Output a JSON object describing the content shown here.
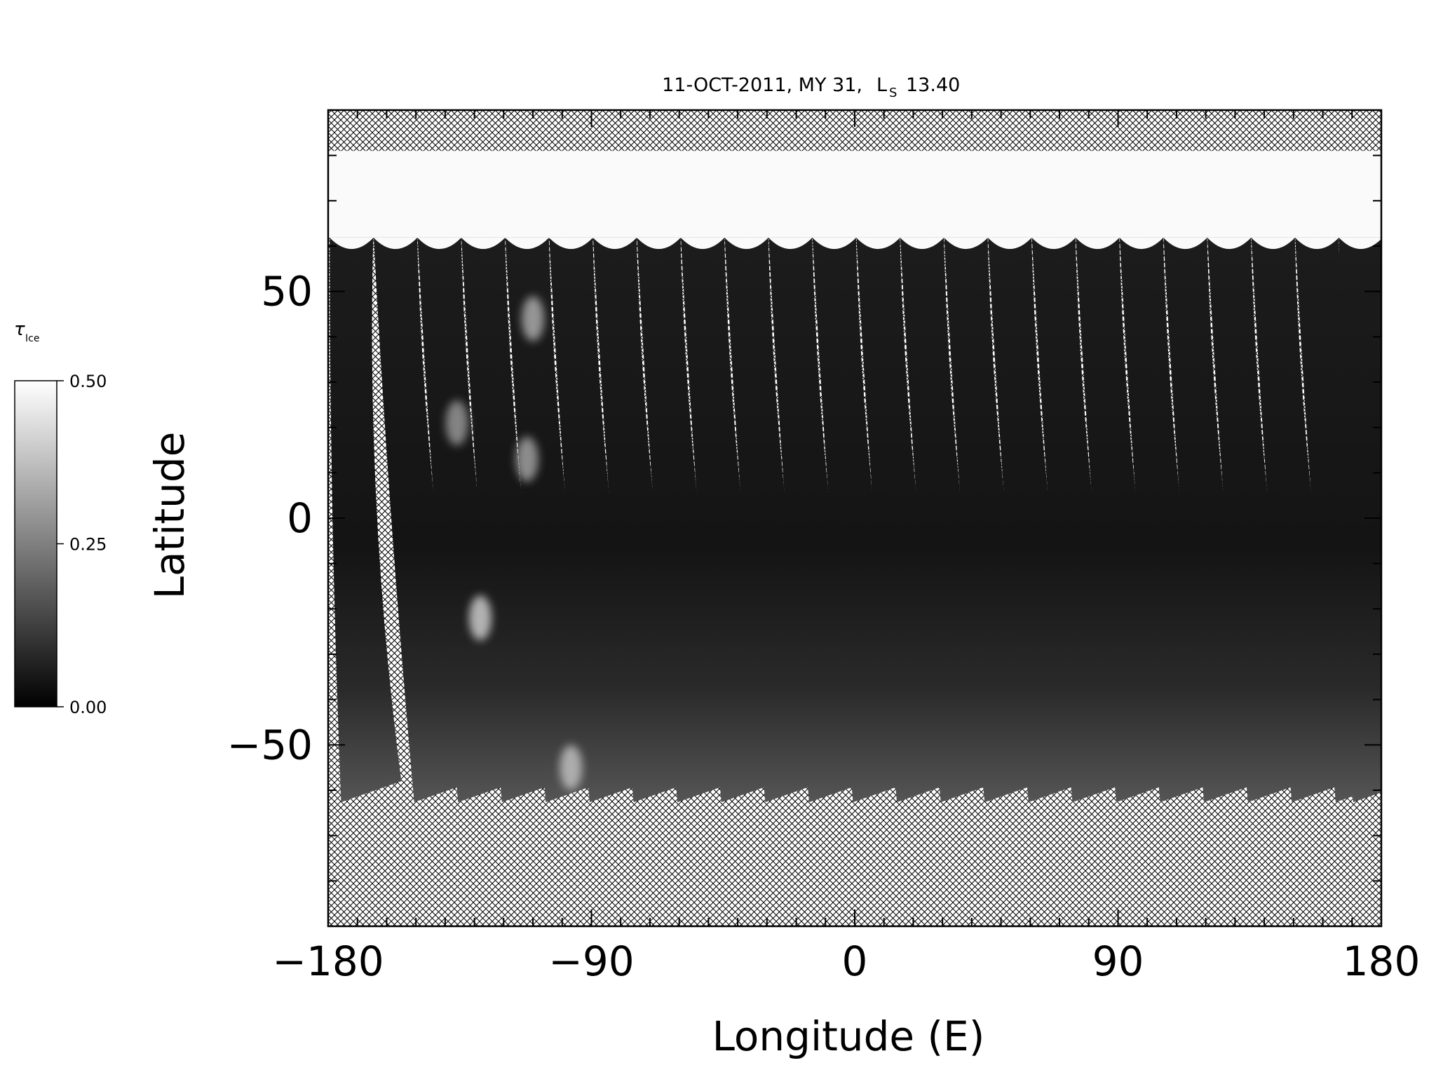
{
  "chart_data": {
    "type": "heatmap",
    "title": {
      "date": "11-OCT-2011, MY 31,",
      "ls_symbol": "L",
      "ls_subscript": "S",
      "ls_value": "13.40"
    },
    "xlabel": "Longitude (E)",
    "ylabel": "Latitude",
    "xlim": [
      -180,
      180
    ],
    "ylim": [
      -90,
      90
    ],
    "x_ticks": [
      {
        "value": -180,
        "label": "−180"
      },
      {
        "value": -90,
        "label": "−90"
      },
      {
        "value": 0,
        "label": "0"
      },
      {
        "value": 90,
        "label": "90"
      },
      {
        "value": 180,
        "label": "180"
      }
    ],
    "y_ticks": [
      {
        "value": -50,
        "label": "−50"
      },
      {
        "value": 0,
        "label": "0"
      },
      {
        "value": 50,
        "label": "50"
      }
    ],
    "x_minor_step": 10,
    "y_minor_step": 10,
    "missing_data_fill": "crosshatch",
    "colorbar": {
      "label_symbol": "τ",
      "label_subscript": "Ice",
      "min": 0.0,
      "max": 0.5,
      "ticks": [
        {
          "value": 0.5,
          "label": "0.50"
        },
        {
          "value": 0.25,
          "label": "0.25"
        },
        {
          "value": 0.0,
          "label": "0.00"
        }
      ],
      "colors": [
        "#000000",
        "#ffffff"
      ]
    },
    "north_cap": {
      "lat_top": 81,
      "lat_bottom": 62,
      "value": 0.49
    },
    "swath_values": {
      "interior": 0.06,
      "south_end": 0.2,
      "cloud_patches": [
        {
          "lon": -128,
          "lat": -22,
          "value": 0.38
        },
        {
          "lon": -110,
          "lat": 44,
          "value": 0.32
        },
        {
          "lon": -112,
          "lat": 13,
          "value": 0.3
        },
        {
          "lon": -136,
          "lat": 21,
          "value": 0.28
        },
        {
          "lon": -97,
          "lat": -55,
          "value": 0.36
        }
      ]
    },
    "swaths": [
      {
        "north_lon": -172,
        "south_lon": -166,
        "south_lat": -58
      },
      {
        "north_lon": -157,
        "south_lon": -141,
        "south_lat": -58
      },
      {
        "north_lon": -142,
        "south_lon": -126,
        "south_lat": -58
      },
      {
        "north_lon": -127,
        "south_lon": -111,
        "south_lat": -58
      },
      {
        "north_lon": -112,
        "south_lon": -96,
        "south_lat": -58
      },
      {
        "north_lon": -97,
        "south_lon": -81,
        "south_lat": -58
      },
      {
        "north_lon": -82,
        "south_lon": -66,
        "south_lat": -58
      },
      {
        "north_lon": -67,
        "south_lon": -51,
        "south_lat": -58
      },
      {
        "north_lon": -52,
        "south_lon": -36,
        "south_lat": -58
      },
      {
        "north_lon": -37,
        "south_lon": -21,
        "south_lat": -58
      },
      {
        "north_lon": -22,
        "south_lon": -6,
        "south_lat": -58
      },
      {
        "north_lon": -7,
        "south_lon": 9,
        "south_lat": -58
      },
      {
        "north_lon": 8,
        "south_lon": 24,
        "south_lat": -58
      },
      {
        "north_lon": 23,
        "south_lon": 39,
        "south_lat": -58
      },
      {
        "north_lon": 38,
        "south_lon": 54,
        "south_lat": -58
      },
      {
        "north_lon": 53,
        "south_lon": 69,
        "south_lat": -58
      },
      {
        "north_lon": 68,
        "south_lon": 84,
        "south_lat": -58
      },
      {
        "north_lon": 83,
        "south_lon": 99,
        "south_lat": -58
      },
      {
        "north_lon": 98,
        "south_lon": 114,
        "south_lat": -58
      },
      {
        "north_lon": 113,
        "south_lon": 129,
        "south_lat": -58
      },
      {
        "north_lon": 128,
        "south_lon": 144,
        "south_lat": -58
      },
      {
        "north_lon": 143,
        "south_lon": 159,
        "south_lat": -58
      },
      {
        "north_lon": 158,
        "south_lon": 174,
        "south_lat": -58
      },
      {
        "north_lon": 173,
        "south_lon": 180,
        "south_lat": -58
      }
    ]
  }
}
